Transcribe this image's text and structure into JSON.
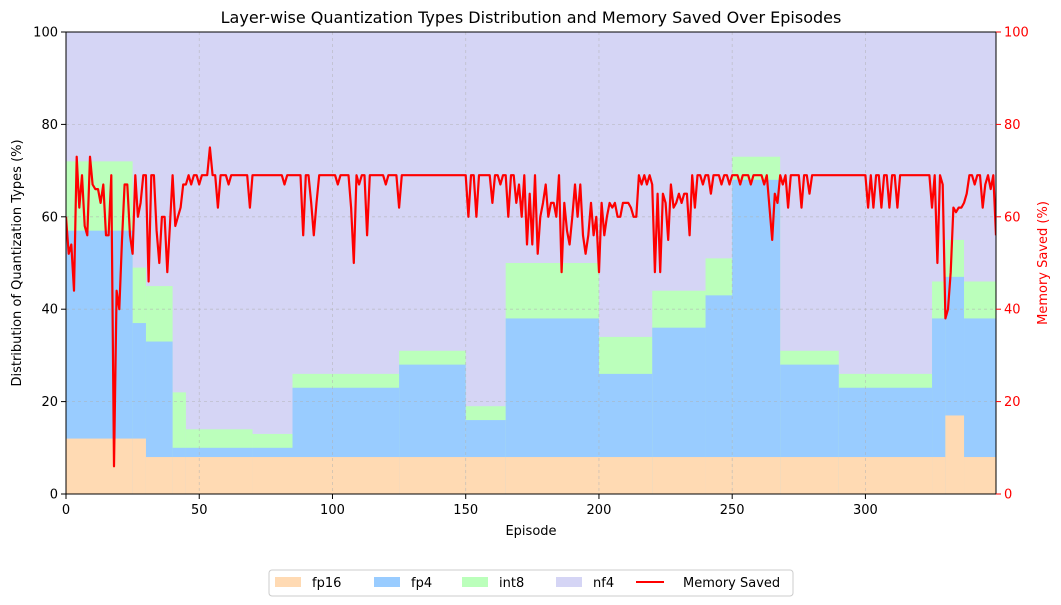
{
  "chart_data": {
    "type": "area",
    "title": "Layer-wise Quantization Types Distribution and Memory Saved Over Episodes",
    "xlabel": "Episode",
    "ylabel": "Distribution of Quantization Types (%)",
    "y2label": "Memory Saved (%)",
    "xlim": [
      0,
      349
    ],
    "ylim": [
      0,
      100
    ],
    "y2lim": [
      0,
      100
    ],
    "x_ticks": [
      0,
      50,
      100,
      150,
      200,
      250,
      300
    ],
    "y_ticks": [
      0,
      20,
      40,
      60,
      80,
      100
    ],
    "y2_ticks": [
      0,
      20,
      40,
      60,
      80,
      100
    ],
    "grid": true,
    "legend_position": "bottom-center",
    "stacked": true,
    "series": [
      {
        "name": "fp16",
        "color": "#ffdab3",
        "segments": [
          {
            "from": 0,
            "to": 30,
            "value": 12
          },
          {
            "from": 30,
            "to": 330,
            "value": 8
          },
          {
            "from": 330,
            "to": 337,
            "value": 17
          },
          {
            "from": 337,
            "to": 349,
            "value": 8
          }
        ]
      },
      {
        "name": "fp4",
        "color": "#99ccff",
        "segments": [
          {
            "from": 0,
            "to": 25,
            "value": 45
          },
          {
            "from": 25,
            "to": 40,
            "value": 25
          },
          {
            "from": 40,
            "to": 85,
            "value": 2
          },
          {
            "from": 85,
            "to": 125,
            "value": 15
          },
          {
            "from": 125,
            "to": 150,
            "value": 20
          },
          {
            "from": 150,
            "to": 165,
            "value": 8
          },
          {
            "from": 165,
            "to": 200,
            "value": 30
          },
          {
            "from": 200,
            "to": 220,
            "value": 18
          },
          {
            "from": 220,
            "to": 240,
            "value": 28
          },
          {
            "from": 240,
            "to": 250,
            "value": 35
          },
          {
            "from": 250,
            "to": 268,
            "value": 60
          },
          {
            "from": 268,
            "to": 290,
            "value": 20
          },
          {
            "from": 290,
            "to": 325,
            "value": 15
          },
          {
            "from": 325,
            "to": 349,
            "value": 30
          }
        ]
      },
      {
        "name": "int8",
        "color": "#bbffbb",
        "segments": [
          {
            "from": 0,
            "to": 25,
            "value": 15
          },
          {
            "from": 25,
            "to": 45,
            "value": 12
          },
          {
            "from": 45,
            "to": 70,
            "value": 4
          },
          {
            "from": 70,
            "to": 165,
            "value": 3
          },
          {
            "from": 165,
            "to": 200,
            "value": 12
          },
          {
            "from": 200,
            "to": 250,
            "value": 8
          },
          {
            "from": 250,
            "to": 268,
            "value": 5
          },
          {
            "from": 268,
            "to": 325,
            "value": 3
          },
          {
            "from": 325,
            "to": 349,
            "value": 8
          }
        ]
      },
      {
        "name": "nf4",
        "color": "#d5d5f5",
        "fills_to_100": true
      },
      {
        "name": "Memory Saved",
        "color": "#ff0000",
        "axis": "right",
        "line": true,
        "points": [
          [
            0,
            60
          ],
          [
            1,
            52
          ],
          [
            2,
            54
          ],
          [
            3,
            44
          ],
          [
            4,
            73
          ],
          [
            5,
            62
          ],
          [
            6,
            69
          ],
          [
            7,
            58
          ],
          [
            8,
            56
          ],
          [
            9,
            73
          ],
          [
            10,
            67
          ],
          [
            11,
            66
          ],
          [
            12,
            66
          ],
          [
            13,
            63
          ],
          [
            14,
            67
          ],
          [
            15,
            56
          ],
          [
            16,
            56
          ],
          [
            17,
            69
          ],
          [
            18,
            6
          ],
          [
            19,
            44
          ],
          [
            20,
            40
          ],
          [
            21,
            55
          ],
          [
            22,
            67
          ],
          [
            23,
            67
          ],
          [
            24,
            56
          ],
          [
            25,
            52
          ],
          [
            26,
            69
          ],
          [
            27,
            60
          ],
          [
            28,
            63
          ],
          [
            29,
            69
          ],
          [
            30,
            69
          ],
          [
            31,
            46
          ],
          [
            32,
            69
          ],
          [
            33,
            69
          ],
          [
            34,
            57
          ],
          [
            35,
            50
          ],
          [
            36,
            60
          ],
          [
            37,
            60
          ],
          [
            38,
            48
          ],
          [
            39,
            58
          ],
          [
            40,
            69
          ],
          [
            41,
            58
          ],
          [
            42,
            60
          ],
          [
            43,
            62
          ],
          [
            44,
            67
          ],
          [
            45,
            67
          ],
          [
            46,
            69
          ],
          [
            47,
            67
          ],
          [
            48,
            69
          ],
          [
            49,
            69
          ],
          [
            50,
            67
          ],
          [
            51,
            69
          ],
          [
            52,
            69
          ],
          [
            53,
            69
          ],
          [
            54,
            75
          ],
          [
            55,
            69
          ],
          [
            56,
            69
          ],
          [
            57,
            62
          ],
          [
            58,
            69
          ],
          [
            59,
            69
          ],
          [
            60,
            69
          ],
          [
            61,
            67
          ],
          [
            62,
            69
          ],
          [
            63,
            69
          ],
          [
            68,
            69
          ],
          [
            69,
            62
          ],
          [
            70,
            69
          ],
          [
            81,
            69
          ],
          [
            82,
            67
          ],
          [
            83,
            69
          ],
          [
            88,
            69
          ],
          [
            89,
            56
          ],
          [
            90,
            69
          ],
          [
            91,
            69
          ],
          [
            92,
            63
          ],
          [
            93,
            56
          ],
          [
            94,
            63
          ],
          [
            95,
            69
          ],
          [
            101,
            69
          ],
          [
            102,
            67
          ],
          [
            103,
            69
          ],
          [
            106,
            69
          ],
          [
            107,
            62
          ],
          [
            108,
            50
          ],
          [
            109,
            69
          ],
          [
            110,
            67
          ],
          [
            111,
            69
          ],
          [
            112,
            69
          ],
          [
            113,
            56
          ],
          [
            114,
            69
          ],
          [
            119,
            69
          ],
          [
            120,
            67
          ],
          [
            121,
            69
          ],
          [
            124,
            69
          ],
          [
            125,
            62
          ],
          [
            126,
            69
          ],
          [
            150,
            69
          ],
          [
            151,
            60
          ],
          [
            152,
            69
          ],
          [
            153,
            69
          ],
          [
            154,
            60
          ],
          [
            155,
            69
          ],
          [
            159,
            69
          ],
          [
            160,
            63
          ],
          [
            161,
            69
          ],
          [
            162,
            69
          ],
          [
            163,
            67
          ],
          [
            164,
            69
          ],
          [
            165,
            69
          ],
          [
            166,
            60
          ],
          [
            167,
            69
          ],
          [
            168,
            69
          ],
          [
            169,
            63
          ],
          [
            170,
            67
          ],
          [
            171,
            60
          ],
          [
            172,
            69
          ],
          [
            173,
            54
          ],
          [
            174,
            65
          ],
          [
            175,
            54
          ],
          [
            176,
            69
          ],
          [
            177,
            52
          ],
          [
            178,
            60
          ],
          [
            179,
            63
          ],
          [
            180,
            67
          ],
          [
            181,
            60
          ],
          [
            182,
            63
          ],
          [
            183,
            63
          ],
          [
            184,
            60
          ],
          [
            185,
            69
          ],
          [
            186,
            48
          ],
          [
            187,
            63
          ],
          [
            188,
            57
          ],
          [
            189,
            54
          ],
          [
            190,
            60
          ],
          [
            191,
            67
          ],
          [
            192,
            60
          ],
          [
            193,
            67
          ],
          [
            194,
            56
          ],
          [
            195,
            52
          ],
          [
            196,
            56
          ],
          [
            197,
            63
          ],
          [
            198,
            56
          ],
          [
            199,
            60
          ],
          [
            200,
            48
          ],
          [
            201,
            63
          ],
          [
            202,
            56
          ],
          [
            203,
            60
          ],
          [
            204,
            63
          ],
          [
            205,
            62
          ],
          [
            206,
            63
          ],
          [
            207,
            60
          ],
          [
            208,
            60
          ],
          [
            209,
            63
          ],
          [
            210,
            63
          ],
          [
            211,
            63
          ],
          [
            212,
            62
          ],
          [
            213,
            60
          ],
          [
            214,
            60
          ],
          [
            215,
            69
          ],
          [
            216,
            67
          ],
          [
            217,
            69
          ],
          [
            218,
            67
          ],
          [
            219,
            69
          ],
          [
            220,
            67
          ],
          [
            221,
            48
          ],
          [
            222,
            65
          ],
          [
            223,
            48
          ],
          [
            224,
            65
          ],
          [
            225,
            63
          ],
          [
            226,
            55
          ],
          [
            227,
            67
          ],
          [
            228,
            62
          ],
          [
            229,
            63
          ],
          [
            230,
            65
          ],
          [
            231,
            63
          ],
          [
            232,
            65
          ],
          [
            233,
            65
          ],
          [
            234,
            56
          ],
          [
            235,
            69
          ],
          [
            236,
            62
          ],
          [
            237,
            69
          ],
          [
            238,
            69
          ],
          [
            239,
            67
          ],
          [
            240,
            69
          ],
          [
            241,
            69
          ],
          [
            242,
            65
          ],
          [
            243,
            69
          ],
          [
            244,
            69
          ],
          [
            245,
            69
          ],
          [
            246,
            67
          ],
          [
            247,
            69
          ],
          [
            248,
            69
          ],
          [
            249,
            67
          ],
          [
            250,
            69
          ],
          [
            251,
            69
          ],
          [
            252,
            69
          ],
          [
            253,
            67
          ],
          [
            254,
            69
          ],
          [
            255,
            69
          ],
          [
            256,
            69
          ],
          [
            257,
            67
          ],
          [
            258,
            69
          ],
          [
            259,
            69
          ],
          [
            260,
            69
          ],
          [
            261,
            69
          ],
          [
            262,
            67
          ],
          [
            263,
            69
          ],
          [
            264,
            62
          ],
          [
            265,
            55
          ],
          [
            266,
            65
          ],
          [
            267,
            63
          ],
          [
            268,
            69
          ],
          [
            269,
            67
          ],
          [
            270,
            69
          ],
          [
            271,
            62
          ],
          [
            272,
            69
          ],
          [
            273,
            69
          ],
          [
            274,
            69
          ],
          [
            275,
            69
          ],
          [
            276,
            62
          ],
          [
            277,
            69
          ],
          [
            278,
            69
          ],
          [
            279,
            65
          ],
          [
            280,
            69
          ],
          [
            300,
            69
          ],
          [
            301,
            62
          ],
          [
            302,
            69
          ],
          [
            303,
            62
          ],
          [
            304,
            69
          ],
          [
            305,
            69
          ],
          [
            306,
            62
          ],
          [
            307,
            69
          ],
          [
            308,
            69
          ],
          [
            309,
            62
          ],
          [
            310,
            69
          ],
          [
            311,
            69
          ],
          [
            312,
            62
          ],
          [
            313,
            69
          ],
          [
            320,
            69
          ],
          [
            321,
            69
          ],
          [
            322,
            69
          ],
          [
            323,
            69
          ],
          [
            324,
            69
          ],
          [
            325,
            62
          ],
          [
            326,
            69
          ],
          [
            327,
            50
          ],
          [
            328,
            69
          ],
          [
            329,
            67
          ],
          [
            330,
            38
          ],
          [
            331,
            40
          ],
          [
            332,
            48
          ],
          [
            333,
            62
          ],
          [
            334,
            61
          ],
          [
            335,
            62
          ],
          [
            336,
            62
          ],
          [
            337,
            63
          ],
          [
            338,
            65
          ],
          [
            339,
            69
          ],
          [
            340,
            69
          ],
          [
            341,
            67
          ],
          [
            342,
            69
          ],
          [
            343,
            69
          ],
          [
            344,
            62
          ],
          [
            345,
            67
          ],
          [
            346,
            69
          ],
          [
            347,
            66
          ],
          [
            348,
            69
          ],
          [
            349,
            56
          ]
        ]
      }
    ]
  }
}
